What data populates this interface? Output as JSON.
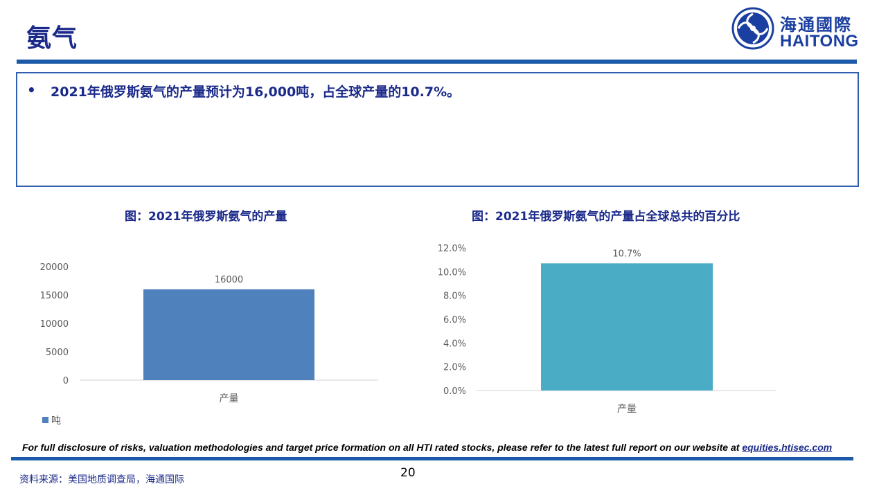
{
  "page": {
    "title": "氨气",
    "bullet": "2021年俄罗斯氨气的产量预计为16,000吨，占全球产量的10.7%。",
    "page_number": "20",
    "source": "资料来源：美国地质调查局，海通国际",
    "disclosure_text": "For full disclosure of risks, valuation methodologies and target price formation on all HTI rated stocks, please refer to the latest full report on our website at ",
    "disclosure_link": "equities.htisec.com"
  },
  "logo": {
    "cn": "海通國際",
    "en": "HAITONG",
    "color": "#1b3fa0"
  },
  "chart_data": [
    {
      "type": "bar",
      "title": "图：2021年俄罗斯氨气的产量",
      "categories": [
        "产量"
      ],
      "series": [
        {
          "name": "吨",
          "values": [
            16000
          ],
          "color": "#4f81bd"
        }
      ],
      "data_labels": [
        "16000"
      ],
      "yticks": [
        "0",
        "5000",
        "10000",
        "15000",
        "20000"
      ],
      "ylim": [
        0,
        20000
      ],
      "grid": false,
      "legend": "bottom-left"
    },
    {
      "type": "bar",
      "title": "图：2021年俄罗斯氨气的产量占全球总共的百分比",
      "categories": [
        "产量"
      ],
      "series": [
        {
          "values": [
            0.107
          ],
          "color": "#4bacc6"
        }
      ],
      "data_labels": [
        "10.7%"
      ],
      "yticks": [
        "0.0%",
        "2.0%",
        "4.0%",
        "6.0%",
        "8.0%",
        "10.0%",
        "12.0%"
      ],
      "ylim": [
        0,
        0.12
      ],
      "grid": false
    }
  ]
}
